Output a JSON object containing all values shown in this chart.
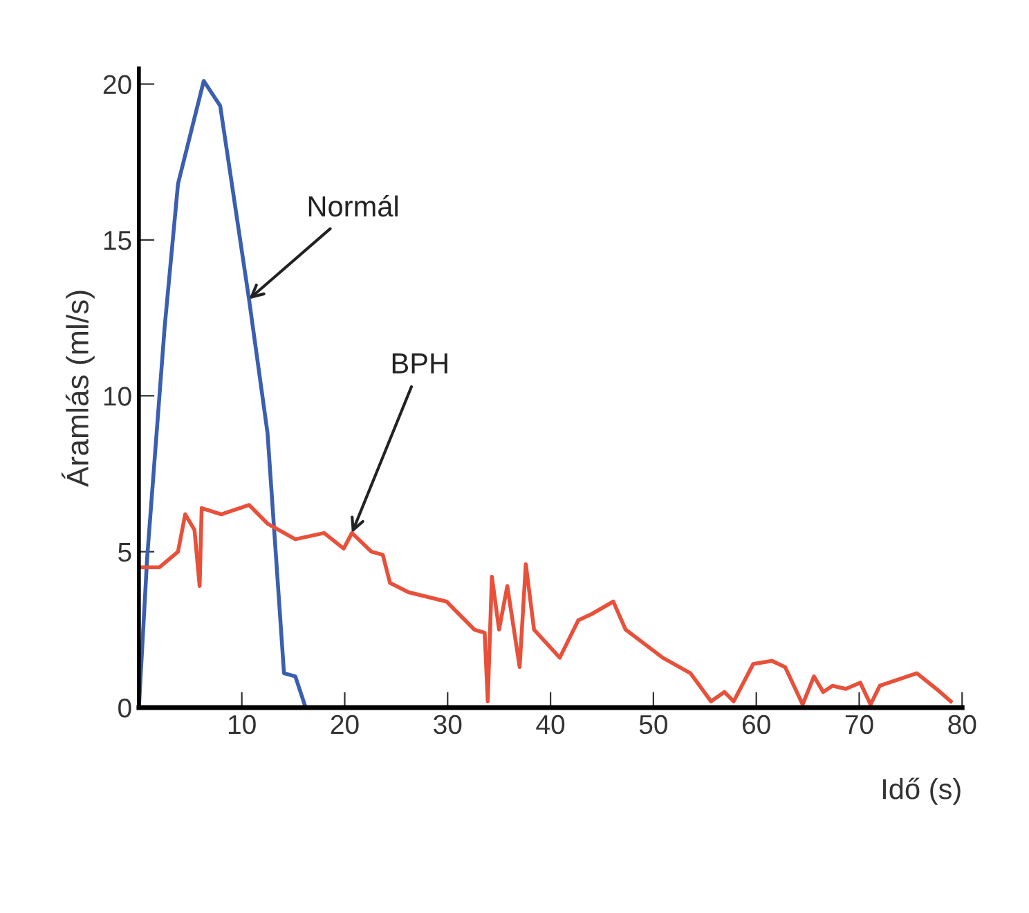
{
  "chart_data": {
    "type": "line",
    "xlabel": "Idő (s)",
    "ylabel": "Áramlás (ml/s)",
    "xlim": [
      0,
      80
    ],
    "ylim": [
      0,
      20.5
    ],
    "xticks": [
      10,
      20,
      30,
      40,
      50,
      60,
      70,
      80
    ],
    "yticks": [
      0,
      5,
      10,
      15,
      20
    ],
    "grid": false,
    "legend": false,
    "marker": "none",
    "line_style": "solid",
    "series": [
      {
        "color": "#3a5fb0",
        "x": [
          0,
          0.8,
          2.5,
          3.8,
          6.3,
          7.9,
          10.7,
          12.5,
          14.1,
          15.2,
          16.2
        ],
        "values": [
          0,
          4.8,
          12.2,
          16.8,
          20.1,
          19.3,
          13.1,
          8.8,
          1.1,
          1.0,
          0
        ]
      },
      {
        "color": "#e8503a",
        "x": [
          0.1,
          2.0,
          3.8,
          4.5,
          5.4,
          5.9,
          6.1,
          8.0,
          10.7,
          12.5,
          15.2,
          18.0,
          19.9,
          20.7,
          22.6,
          23.7,
          24.4,
          26.2,
          29.9,
          32.6,
          33.6,
          33.9,
          34.3,
          35.0,
          35.8,
          37.0,
          37.6,
          38.4,
          40.9,
          42.7,
          44.0,
          46.1,
          47.3,
          50.9,
          53.6,
          55.6,
          56.9,
          57.8,
          59.7,
          61.5,
          62.8,
          64.5,
          65.6,
          66.5,
          67.4,
          68.7,
          70.1,
          71.1,
          72.0,
          73.8,
          75.6,
          77.5,
          78.9
        ],
        "values": [
          4.5,
          4.5,
          5.0,
          6.2,
          5.7,
          3.9,
          6.4,
          6.2,
          6.5,
          5.9,
          5.4,
          5.6,
          5.1,
          5.6,
          5.0,
          4.9,
          4.0,
          3.7,
          3.4,
          2.5,
          2.4,
          0.2,
          4.2,
          2.5,
          3.9,
          1.3,
          4.6,
          2.5,
          1.6,
          2.8,
          3.0,
          3.4,
          2.5,
          1.6,
          1.1,
          0.2,
          0.5,
          0.2,
          1.4,
          1.5,
          1.3,
          0.1,
          1.0,
          0.5,
          0.7,
          0.6,
          0.8,
          0.1,
          0.7,
          0.9,
          1.1,
          0.6,
          0.2
        ]
      }
    ],
    "annotations": [
      {
        "text": "Normál",
        "x": 10.7,
        "y": 13.1
      },
      {
        "text": "BPH",
        "x": 20.7,
        "y": 5.6
      }
    ]
  }
}
